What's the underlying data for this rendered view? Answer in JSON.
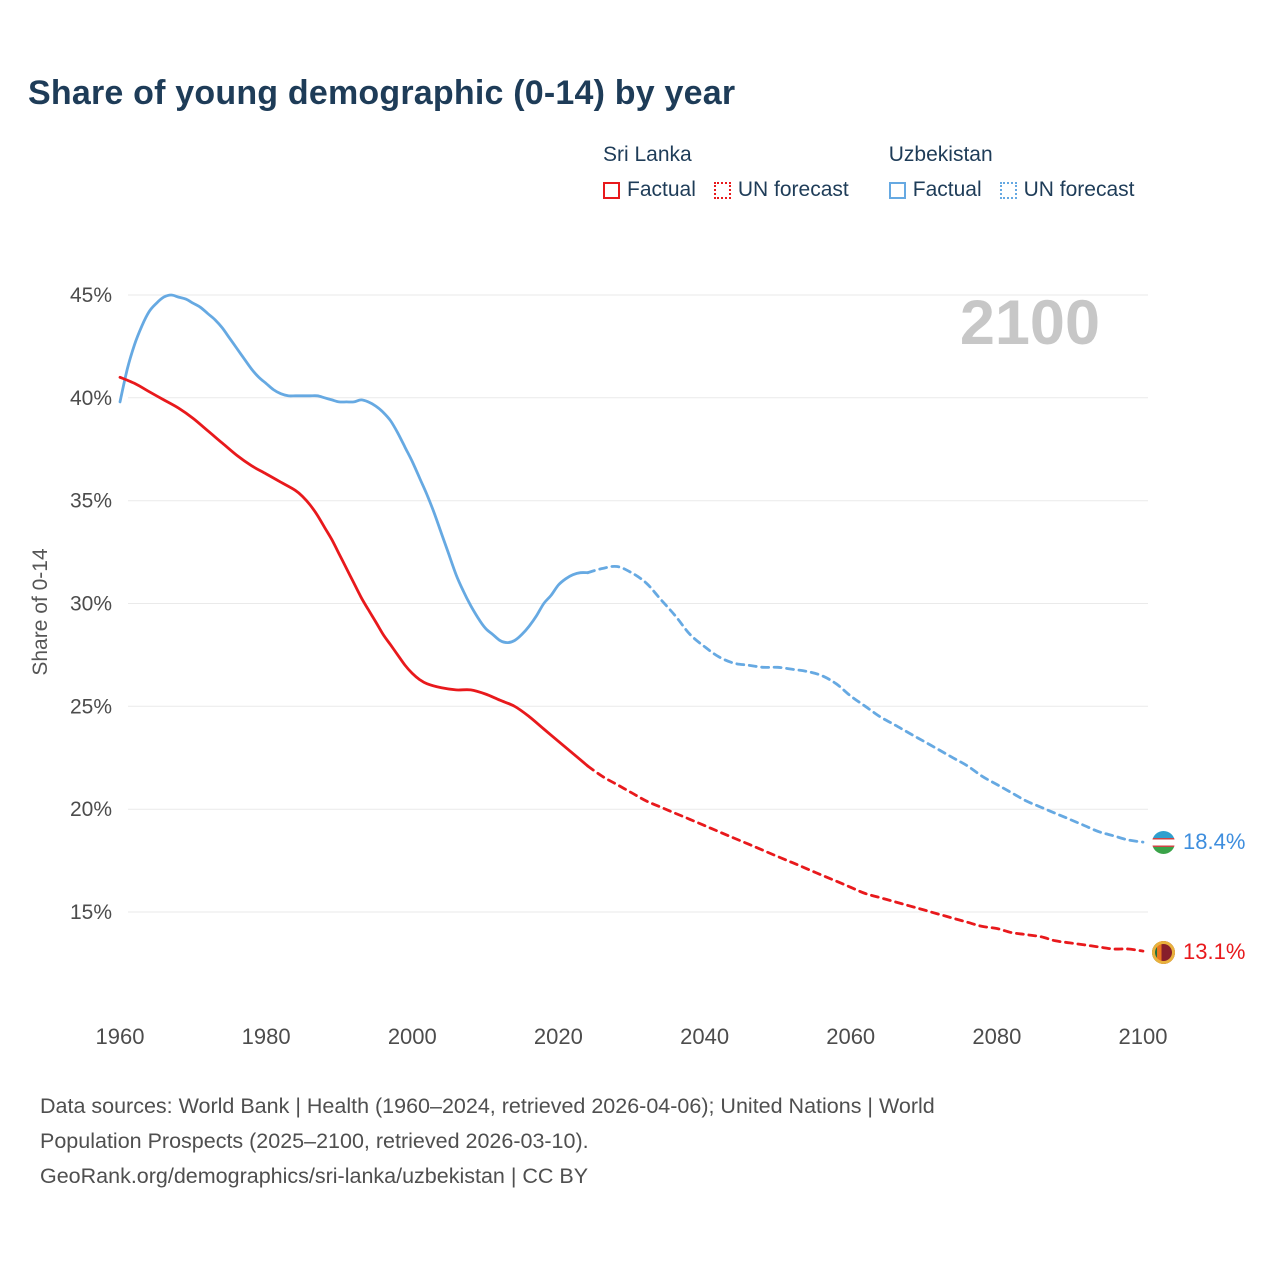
{
  "page": {
    "title": "Share of young demographic (0-14) by year"
  },
  "legend": {
    "groups": [
      {
        "name": "Sri Lanka",
        "color": "#e8191c",
        "factual_label": "Factual",
        "forecast_label": "UN forecast"
      },
      {
        "name": "Uzbekistan",
        "color": "#66a9e2",
        "factual_label": "Factual",
        "forecast_label": "UN forecast"
      }
    ]
  },
  "chart_data": {
    "type": "line",
    "title": "Share of young demographic (0-14) by year",
    "ylabel": "Share of 0-14",
    "xlabel": "",
    "watermark": "2100",
    "grid": "horizontal",
    "legend_position": "top-right",
    "x_range": [
      1960,
      2100
    ],
    "y_range_pct": [
      15,
      45
    ],
    "yticks": [
      15,
      20,
      25,
      30,
      35,
      40,
      45
    ],
    "xticks": [
      1960,
      1980,
      2000,
      2020,
      2040,
      2060,
      2080,
      2100
    ],
    "series": [
      {
        "id": "uzbekistan-factual",
        "name": "Uzbekistan Factual",
        "country": "Uzbekistan",
        "kind": "factual",
        "color": "#66a9e2",
        "line_style": "solid",
        "points": [
          [
            1960,
            39.8
          ],
          [
            1961,
            41.4
          ],
          [
            1962,
            42.6
          ],
          [
            1963,
            43.5
          ],
          [
            1964,
            44.2
          ],
          [
            1965,
            44.6
          ],
          [
            1966,
            44.9
          ],
          [
            1967,
            45.0
          ],
          [
            1968,
            44.9
          ],
          [
            1969,
            44.8
          ],
          [
            1970,
            44.6
          ],
          [
            1971,
            44.4
          ],
          [
            1972,
            44.1
          ],
          [
            1973,
            43.8
          ],
          [
            1974,
            43.4
          ],
          [
            1975,
            42.9
          ],
          [
            1976,
            42.4
          ],
          [
            1977,
            41.9
          ],
          [
            1978,
            41.4
          ],
          [
            1979,
            41.0
          ],
          [
            1980,
            40.7
          ],
          [
            1981,
            40.4
          ],
          [
            1982,
            40.2
          ],
          [
            1983,
            40.1
          ],
          [
            1984,
            40.1
          ],
          [
            1985,
            40.1
          ],
          [
            1986,
            40.1
          ],
          [
            1987,
            40.1
          ],
          [
            1988,
            40.0
          ],
          [
            1989,
            39.9
          ],
          [
            1990,
            39.8
          ],
          [
            1991,
            39.8
          ],
          [
            1992,
            39.8
          ],
          [
            1993,
            39.9
          ],
          [
            1994,
            39.8
          ],
          [
            1995,
            39.6
          ],
          [
            1996,
            39.3
          ],
          [
            1997,
            38.9
          ],
          [
            1998,
            38.3
          ],
          [
            1999,
            37.6
          ],
          [
            2000,
            36.9
          ],
          [
            2001,
            36.1
          ],
          [
            2002,
            35.3
          ],
          [
            2003,
            34.4
          ],
          [
            2004,
            33.4
          ],
          [
            2005,
            32.4
          ],
          [
            2006,
            31.4
          ],
          [
            2007,
            30.6
          ],
          [
            2008,
            29.9
          ],
          [
            2009,
            29.3
          ],
          [
            2010,
            28.8
          ],
          [
            2011,
            28.5
          ],
          [
            2012,
            28.2
          ],
          [
            2013,
            28.1
          ],
          [
            2014,
            28.2
          ],
          [
            2015,
            28.5
          ],
          [
            2016,
            28.9
          ],
          [
            2017,
            29.4
          ],
          [
            2018,
            30.0
          ],
          [
            2019,
            30.4
          ],
          [
            2020,
            30.9
          ],
          [
            2021,
            31.2
          ],
          [
            2022,
            31.4
          ],
          [
            2023,
            31.5
          ],
          [
            2024,
            31.5
          ]
        ]
      },
      {
        "id": "uzbekistan-forecast",
        "name": "Uzbekistan UN forecast",
        "country": "Uzbekistan",
        "kind": "forecast",
        "color": "#66a9e2",
        "line_style": "dashed",
        "points": [
          [
            2024,
            31.5
          ],
          [
            2026,
            31.7
          ],
          [
            2028,
            31.8
          ],
          [
            2030,
            31.5
          ],
          [
            2032,
            31.0
          ],
          [
            2034,
            30.2
          ],
          [
            2036,
            29.4
          ],
          [
            2038,
            28.5
          ],
          [
            2040,
            27.9
          ],
          [
            2042,
            27.4
          ],
          [
            2044,
            27.1
          ],
          [
            2046,
            27.0
          ],
          [
            2048,
            26.9
          ],
          [
            2050,
            26.9
          ],
          [
            2052,
            26.8
          ],
          [
            2054,
            26.7
          ],
          [
            2056,
            26.5
          ],
          [
            2058,
            26.1
          ],
          [
            2060,
            25.5
          ],
          [
            2062,
            25.0
          ],
          [
            2064,
            24.5
          ],
          [
            2066,
            24.1
          ],
          [
            2068,
            23.7
          ],
          [
            2070,
            23.3
          ],
          [
            2072,
            22.9
          ],
          [
            2074,
            22.5
          ],
          [
            2076,
            22.1
          ],
          [
            2078,
            21.6
          ],
          [
            2080,
            21.2
          ],
          [
            2082,
            20.8
          ],
          [
            2084,
            20.4
          ],
          [
            2086,
            20.1
          ],
          [
            2088,
            19.8
          ],
          [
            2090,
            19.5
          ],
          [
            2092,
            19.2
          ],
          [
            2094,
            18.9
          ],
          [
            2096,
            18.7
          ],
          [
            2098,
            18.5
          ],
          [
            2100,
            18.4
          ]
        ]
      },
      {
        "id": "sri-lanka-factual",
        "name": "Sri Lanka Factual",
        "country": "Sri Lanka",
        "kind": "factual",
        "color": "#e8191c",
        "line_style": "solid",
        "points": [
          [
            1960,
            41.0
          ],
          [
            1962,
            40.7
          ],
          [
            1964,
            40.3
          ],
          [
            1966,
            39.9
          ],
          [
            1968,
            39.5
          ],
          [
            1970,
            39.0
          ],
          [
            1972,
            38.4
          ],
          [
            1974,
            37.8
          ],
          [
            1976,
            37.2
          ],
          [
            1978,
            36.7
          ],
          [
            1980,
            36.3
          ],
          [
            1982,
            35.9
          ],
          [
            1984,
            35.5
          ],
          [
            1985,
            35.2
          ],
          [
            1986,
            34.8
          ],
          [
            1987,
            34.3
          ],
          [
            1988,
            33.7
          ],
          [
            1989,
            33.1
          ],
          [
            1990,
            32.4
          ],
          [
            1991,
            31.7
          ],
          [
            1992,
            31.0
          ],
          [
            1993,
            30.3
          ],
          [
            1994,
            29.7
          ],
          [
            1995,
            29.1
          ],
          [
            1996,
            28.5
          ],
          [
            1997,
            28.0
          ],
          [
            1998,
            27.5
          ],
          [
            1999,
            27.0
          ],
          [
            2000,
            26.6
          ],
          [
            2001,
            26.3
          ],
          [
            2002,
            26.1
          ],
          [
            2004,
            25.9
          ],
          [
            2006,
            25.8
          ],
          [
            2008,
            25.8
          ],
          [
            2010,
            25.6
          ],
          [
            2012,
            25.3
          ],
          [
            2014,
            25.0
          ],
          [
            2016,
            24.5
          ],
          [
            2018,
            23.9
          ],
          [
            2020,
            23.3
          ],
          [
            2022,
            22.7
          ],
          [
            2024,
            22.1
          ]
        ]
      },
      {
        "id": "sri-lanka-forecast",
        "name": "Sri Lanka UN forecast",
        "country": "Sri Lanka",
        "kind": "forecast",
        "color": "#e8191c",
        "line_style": "dashed",
        "points": [
          [
            2024,
            22.1
          ],
          [
            2026,
            21.6
          ],
          [
            2028,
            21.2
          ],
          [
            2030,
            20.8
          ],
          [
            2032,
            20.4
          ],
          [
            2034,
            20.1
          ],
          [
            2036,
            19.8
          ],
          [
            2038,
            19.5
          ],
          [
            2040,
            19.2
          ],
          [
            2042,
            18.9
          ],
          [
            2044,
            18.6
          ],
          [
            2046,
            18.3
          ],
          [
            2048,
            18.0
          ],
          [
            2050,
            17.7
          ],
          [
            2052,
            17.4
          ],
          [
            2054,
            17.1
          ],
          [
            2056,
            16.8
          ],
          [
            2058,
            16.5
          ],
          [
            2060,
            16.2
          ],
          [
            2062,
            15.9
          ],
          [
            2064,
            15.7
          ],
          [
            2066,
            15.5
          ],
          [
            2068,
            15.3
          ],
          [
            2070,
            15.1
          ],
          [
            2072,
            14.9
          ],
          [
            2074,
            14.7
          ],
          [
            2076,
            14.5
          ],
          [
            2078,
            14.3
          ],
          [
            2080,
            14.2
          ],
          [
            2082,
            14.0
          ],
          [
            2084,
            13.9
          ],
          [
            2086,
            13.8
          ],
          [
            2088,
            13.6
          ],
          [
            2090,
            13.5
          ],
          [
            2092,
            13.4
          ],
          [
            2094,
            13.3
          ],
          [
            2096,
            13.2
          ],
          [
            2098,
            13.2
          ],
          [
            2100,
            13.1
          ]
        ]
      }
    ]
  },
  "end_labels": [
    {
      "country": "Uzbekistan",
      "value_label": "18.4%",
      "color": "#3e8ede",
      "flag": "uzbekistan-flag"
    },
    {
      "country": "Sri Lanka",
      "value_label": "13.1%",
      "color": "#e8191c",
      "flag": "sri-lanka-flag"
    }
  ],
  "footer": {
    "lines": [
      "Data sources: World Bank | Health (1960–2024, retrieved 2026-04-06); United Nations | World",
      "Population Prospects (2025–2100, retrieved 2026-03-10).",
      "GeoRank.org/demographics/sri-lanka/uzbekistan | CC BY"
    ]
  }
}
